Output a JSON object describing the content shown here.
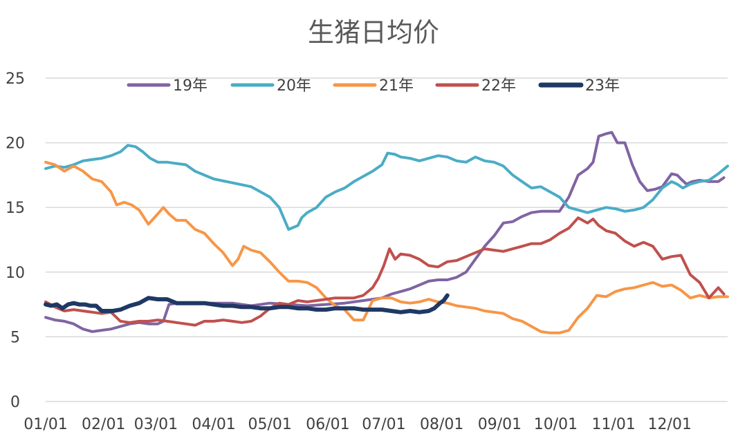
{
  "chart_data": {
    "type": "line",
    "title": "生猪日均价",
    "ylim": [
      0,
      25
    ],
    "yticks": [
      0,
      5,
      10,
      15,
      20,
      25
    ],
    "grid": true,
    "legend": "top",
    "x_range": [
      0,
      365
    ],
    "x_tick_values": [
      0,
      31,
      59,
      90,
      120,
      151,
      181,
      212,
      243,
      273,
      304,
      334
    ],
    "x_tick_labels": [
      "01/01",
      "02/01",
      "03/01",
      "04/01",
      "05/01",
      "06/01",
      "07/01",
      "08/01",
      "09/01",
      "10/01",
      "11/01",
      "12/01"
    ],
    "series": [
      {
        "name": "19年",
        "color": "#8064a2",
        "width": 4,
        "x": [
          0,
          5,
          10,
          15,
          20,
          25,
          30,
          35,
          40,
          45,
          50,
          55,
          60,
          63,
          66,
          70,
          75,
          80,
          90,
          100,
          110,
          120,
          130,
          140,
          150,
          160,
          170,
          180,
          185,
          190,
          195,
          200,
          205,
          210,
          215,
          220,
          225,
          230,
          235,
          240,
          245,
          250,
          255,
          260,
          265,
          270,
          275,
          280,
          285,
          290,
          293,
          296,
          300,
          303,
          306,
          310,
          314,
          318,
          322,
          326,
          330,
          335,
          338,
          340,
          343,
          346,
          350,
          355,
          360,
          363
        ],
        "y": [
          6.5,
          6.3,
          6.2,
          6.0,
          5.6,
          5.4,
          5.5,
          5.6,
          5.8,
          6.0,
          6.1,
          6.0,
          6.0,
          6.2,
          7.5,
          7.6,
          7.6,
          7.6,
          7.6,
          7.6,
          7.4,
          7.6,
          7.5,
          7.4,
          7.5,
          7.6,
          7.8,
          8.0,
          8.3,
          8.5,
          8.7,
          9.0,
          9.3,
          9.4,
          9.4,
          9.6,
          10.0,
          11.0,
          12.0,
          12.8,
          13.8,
          13.9,
          14.3,
          14.6,
          14.7,
          14.7,
          14.7,
          15.8,
          17.5,
          18.0,
          18.5,
          20.5,
          20.7,
          20.8,
          20.0,
          20.0,
          18.3,
          17.0,
          16.3,
          16.4,
          16.6,
          17.6,
          17.5,
          17.2,
          16.8,
          17.0,
          17.1,
          17.0,
          17.0,
          17.3
        ]
      },
      {
        "name": "20年",
        "color": "#4bacc6",
        "width": 4,
        "x": [
          0,
          5,
          10,
          15,
          20,
          25,
          30,
          35,
          40,
          44,
          48,
          52,
          56,
          60,
          65,
          70,
          75,
          80,
          90,
          100,
          110,
          120,
          125,
          130,
          135,
          137,
          140,
          145,
          150,
          155,
          160,
          165,
          170,
          175,
          180,
          183,
          187,
          190,
          195,
          200,
          205,
          210,
          215,
          220,
          225,
          230,
          235,
          240,
          245,
          250,
          255,
          260,
          265,
          270,
          275,
          280,
          285,
          290,
          295,
          300,
          305,
          310,
          315,
          320,
          325,
          330,
          335,
          338,
          341,
          345,
          350,
          355,
          360,
          365
        ],
        "y": [
          18.0,
          18.2,
          18.1,
          18.3,
          18.6,
          18.7,
          18.8,
          19.0,
          19.3,
          19.8,
          19.7,
          19.3,
          18.8,
          18.5,
          18.5,
          18.4,
          18.3,
          17.8,
          17.2,
          16.9,
          16.6,
          15.8,
          15.0,
          13.3,
          13.6,
          14.2,
          14.6,
          15.0,
          15.8,
          16.2,
          16.5,
          17.0,
          17.4,
          17.8,
          18.3,
          19.2,
          19.1,
          18.9,
          18.8,
          18.6,
          18.8,
          19.0,
          18.9,
          18.6,
          18.5,
          18.9,
          18.6,
          18.5,
          18.2,
          17.5,
          17.0,
          16.5,
          16.6,
          16.2,
          15.8,
          15.0,
          14.8,
          14.6,
          14.8,
          15.0,
          14.9,
          14.7,
          14.8,
          15.0,
          15.6,
          16.5,
          17.0,
          16.8,
          16.5,
          16.8,
          17.0,
          17.1,
          17.6,
          18.2
        ]
      },
      {
        "name": "21年",
        "color": "#f79646",
        "width": 4,
        "x": [
          0,
          5,
          10,
          15,
          20,
          25,
          30,
          35,
          38,
          42,
          46,
          50,
          55,
          60,
          63,
          66,
          70,
          75,
          80,
          85,
          90,
          95,
          100,
          103,
          106,
          110,
          115,
          120,
          125,
          130,
          135,
          140,
          145,
          150,
          155,
          160,
          165,
          170,
          175,
          180,
          185,
          190,
          195,
          200,
          205,
          210,
          215,
          220,
          225,
          230,
          235,
          240,
          245,
          250,
          255,
          260,
          265,
          270,
          275,
          280,
          285,
          290,
          295,
          300,
          305,
          310,
          315,
          320,
          325,
          330,
          335,
          340,
          345,
          350,
          355,
          360,
          365
        ],
        "y": [
          18.5,
          18.3,
          17.8,
          18.2,
          17.8,
          17.2,
          17.0,
          16.2,
          15.2,
          15.4,
          15.2,
          14.8,
          13.7,
          14.5,
          15.0,
          14.5,
          14.0,
          14.0,
          13.3,
          13.0,
          12.2,
          11.5,
          10.5,
          11.0,
          12.0,
          11.7,
          11.5,
          10.8,
          10.0,
          9.3,
          9.3,
          9.2,
          8.8,
          8.0,
          7.4,
          7.1,
          6.3,
          6.3,
          7.8,
          8.0,
          8.0,
          7.7,
          7.6,
          7.7,
          7.9,
          7.7,
          7.6,
          7.4,
          7.3,
          7.2,
          7.0,
          6.9,
          6.8,
          6.4,
          6.2,
          5.8,
          5.4,
          5.3,
          5.3,
          5.5,
          6.5,
          7.2,
          8.2,
          8.1,
          8.5,
          8.7,
          8.8,
          9.0,
          9.2,
          8.9,
          9.0,
          8.6,
          8.0,
          8.2,
          8.0,
          8.1,
          8.1
        ]
      },
      {
        "name": "22年",
        "color": "#c0504d",
        "width": 4,
        "x": [
          0,
          5,
          10,
          15,
          20,
          25,
          30,
          35,
          40,
          45,
          50,
          55,
          60,
          65,
          70,
          75,
          80,
          85,
          90,
          95,
          100,
          105,
          110,
          115,
          120,
          125,
          130,
          135,
          140,
          145,
          150,
          155,
          160,
          165,
          170,
          175,
          178,
          181,
          184,
          187,
          190,
          195,
          200,
          205,
          210,
          215,
          220,
          225,
          230,
          235,
          240,
          245,
          250,
          255,
          260,
          265,
          270,
          275,
          280,
          285,
          290,
          293,
          296,
          300,
          305,
          310,
          315,
          320,
          325,
          330,
          335,
          340,
          345,
          350,
          355,
          360,
          363
        ],
        "y": [
          7.7,
          7.3,
          7.0,
          7.1,
          7.0,
          6.9,
          6.8,
          6.9,
          6.2,
          6.1,
          6.2,
          6.2,
          6.3,
          6.2,
          6.1,
          6.0,
          5.9,
          6.2,
          6.2,
          6.3,
          6.2,
          6.1,
          6.2,
          6.6,
          7.2,
          7.6,
          7.5,
          7.8,
          7.7,
          7.8,
          7.9,
          8.0,
          8.0,
          8.0,
          8.2,
          8.8,
          9.5,
          10.5,
          11.8,
          11.0,
          11.4,
          11.3,
          11.0,
          10.5,
          10.4,
          10.8,
          10.9,
          11.2,
          11.5,
          11.8,
          11.7,
          11.6,
          11.8,
          12.0,
          12.2,
          12.2,
          12.5,
          13.0,
          13.4,
          14.2,
          13.8,
          14.1,
          13.6,
          13.2,
          13.0,
          12.4,
          12.0,
          12.3,
          12.0,
          11.0,
          11.2,
          11.3,
          9.8,
          9.2,
          8.0,
          8.8,
          8.3
        ]
      },
      {
        "name": "23年",
        "color": "#1f3864",
        "width": 6,
        "x": [
          0,
          3,
          6,
          9,
          12,
          15,
          18,
          21,
          24,
          27,
          30,
          33,
          36,
          40,
          45,
          50,
          55,
          60,
          65,
          70,
          75,
          80,
          85,
          90,
          95,
          100,
          105,
          110,
          115,
          120,
          125,
          130,
          135,
          140,
          145,
          150,
          155,
          160,
          165,
          170,
          175,
          180,
          185,
          190,
          195,
          200,
          205,
          208,
          211,
          213,
          215
        ],
        "y": [
          7.5,
          7.4,
          7.5,
          7.2,
          7.5,
          7.6,
          7.5,
          7.5,
          7.4,
          7.4,
          7.0,
          7.0,
          7.0,
          7.1,
          7.4,
          7.6,
          8.0,
          7.9,
          7.9,
          7.6,
          7.6,
          7.6,
          7.6,
          7.5,
          7.4,
          7.4,
          7.3,
          7.3,
          7.2,
          7.2,
          7.3,
          7.3,
          7.2,
          7.2,
          7.1,
          7.1,
          7.2,
          7.2,
          7.2,
          7.1,
          7.1,
          7.1,
          7.0,
          6.9,
          7.0,
          6.9,
          7.0,
          7.2,
          7.6,
          7.8,
          8.2
        ]
      }
    ]
  }
}
